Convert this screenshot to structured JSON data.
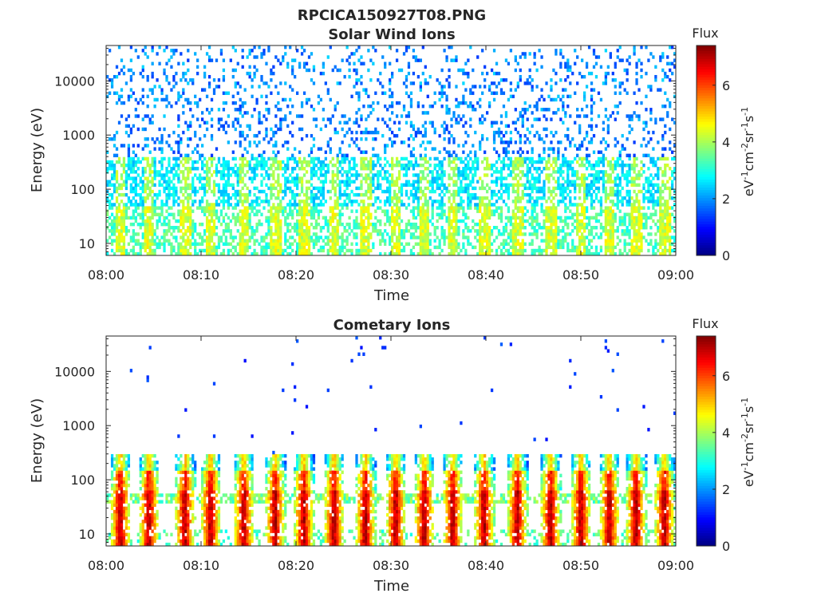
{
  "figure_title": "RPCICA150927T08.PNG",
  "chart_data": [
    {
      "type": "heatmap",
      "title": "Solar Wind Ions",
      "xlabel": "Time",
      "ylabel": "Energy (eV)",
      "x_ticks": [
        "08:00",
        "08:10",
        "08:20",
        "08:30",
        "08:40",
        "08:50",
        "09:00"
      ],
      "x_range": [
        "08:00",
        "09:00"
      ],
      "y_scale": "log",
      "y_ticks": [
        "10",
        "100",
        "1000",
        "10000"
      ],
      "y_range": [
        6,
        45000
      ],
      "colorbar": {
        "label": "Flux",
        "units": "eV⁻¹cm⁻²sr⁻¹s⁻¹",
        "units_base": "eV",
        "units_rest": [
          "cm",
          "sr",
          "s"
        ],
        "units_exp": [
          "-1",
          "-2",
          "-1",
          "-1"
        ],
        "ticks": [
          "0",
          "2",
          "4",
          "6"
        ],
        "range": [
          0,
          7.4
        ],
        "colormap": "jet"
      },
      "bursts_minutes": [
        1.5,
        4.5,
        8.3,
        11.0,
        14.5,
        17.8,
        20.8,
        24.0,
        27.3,
        30.5,
        33.5,
        36.5,
        39.8,
        43.3,
        46.8,
        50.0,
        53.0,
        55.8,
        58.8
      ]
    },
    {
      "type": "heatmap",
      "title": "Cometary Ions",
      "xlabel": "Time",
      "ylabel": "Energy (eV)",
      "x_ticks": [
        "08:00",
        "08:10",
        "08:20",
        "08:30",
        "08:40",
        "08:50",
        "09:00"
      ],
      "x_range": [
        "08:00",
        "09:00"
      ],
      "y_scale": "log",
      "y_ticks": [
        "10",
        "100",
        "1000",
        "10000"
      ],
      "y_range": [
        6,
        45000
      ],
      "colorbar": {
        "label": "Flux",
        "units": "eV⁻¹cm⁻²sr⁻¹s⁻¹",
        "units_base": "eV",
        "units_rest": [
          "cm",
          "sr",
          "s"
        ],
        "units_exp": [
          "-1",
          "-2",
          "-1",
          "-1"
        ],
        "ticks": [
          "0",
          "2",
          "4",
          "6"
        ],
        "range": [
          0,
          7.4
        ],
        "colormap": "jet"
      },
      "bursts_minutes": [
        1.5,
        4.5,
        8.3,
        11.0,
        14.5,
        17.8,
        20.8,
        24.0,
        27.3,
        30.5,
        33.5,
        36.5,
        39.8,
        43.3,
        46.8,
        50.0,
        53.0,
        55.8,
        58.8
      ]
    }
  ]
}
